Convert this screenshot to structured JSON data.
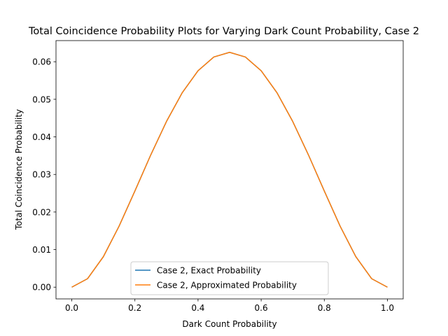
{
  "chart_data": {
    "type": "line",
    "title": "Total Coincidence Probability Plots for Varying Dark Count Probability, Case 2",
    "xlabel": "Dark Count Probability",
    "ylabel": "Total Coincidence Probability",
    "xlim": [
      -0.05,
      1.05
    ],
    "ylim": [
      -0.003125,
      0.065625
    ],
    "xticks": [
      0.0,
      0.2,
      0.4,
      0.6,
      0.8,
      1.0
    ],
    "xtick_labels": [
      "0.0",
      "0.2",
      "0.4",
      "0.6",
      "0.8",
      "1.0"
    ],
    "yticks": [
      0.0,
      0.01,
      0.02,
      0.03,
      0.04,
      0.05,
      0.06
    ],
    "ytick_labels": [
      "0.00",
      "0.01",
      "0.02",
      "0.03",
      "0.04",
      "0.05",
      "0.06"
    ],
    "grid": false,
    "legend_position": "lower center",
    "x": [
      0.0,
      0.05,
      0.1,
      0.15,
      0.2,
      0.25,
      0.3,
      0.35,
      0.4,
      0.45,
      0.5,
      0.55,
      0.6,
      0.65,
      0.7,
      0.75,
      0.8,
      0.85,
      0.9,
      0.95,
      1.0
    ],
    "series": [
      {
        "name": "Case 2, Exact Probability",
        "color": "#1f77b4",
        "values": [
          0.0,
          0.00226,
          0.0081,
          0.01626,
          0.0256,
          0.03516,
          0.0441,
          0.05176,
          0.0576,
          0.06126,
          0.0625,
          0.06126,
          0.0576,
          0.05176,
          0.0441,
          0.03516,
          0.0256,
          0.01626,
          0.0081,
          0.00226,
          0.0
        ]
      },
      {
        "name": "Case 2, Approximated Probability",
        "color": "#ff7f0e",
        "values": [
          0.0,
          0.00226,
          0.0081,
          0.01626,
          0.0256,
          0.03516,
          0.0441,
          0.05176,
          0.0576,
          0.06126,
          0.0625,
          0.06126,
          0.0576,
          0.05176,
          0.0441,
          0.03516,
          0.0256,
          0.01626,
          0.0081,
          0.00226,
          0.0
        ]
      }
    ]
  }
}
